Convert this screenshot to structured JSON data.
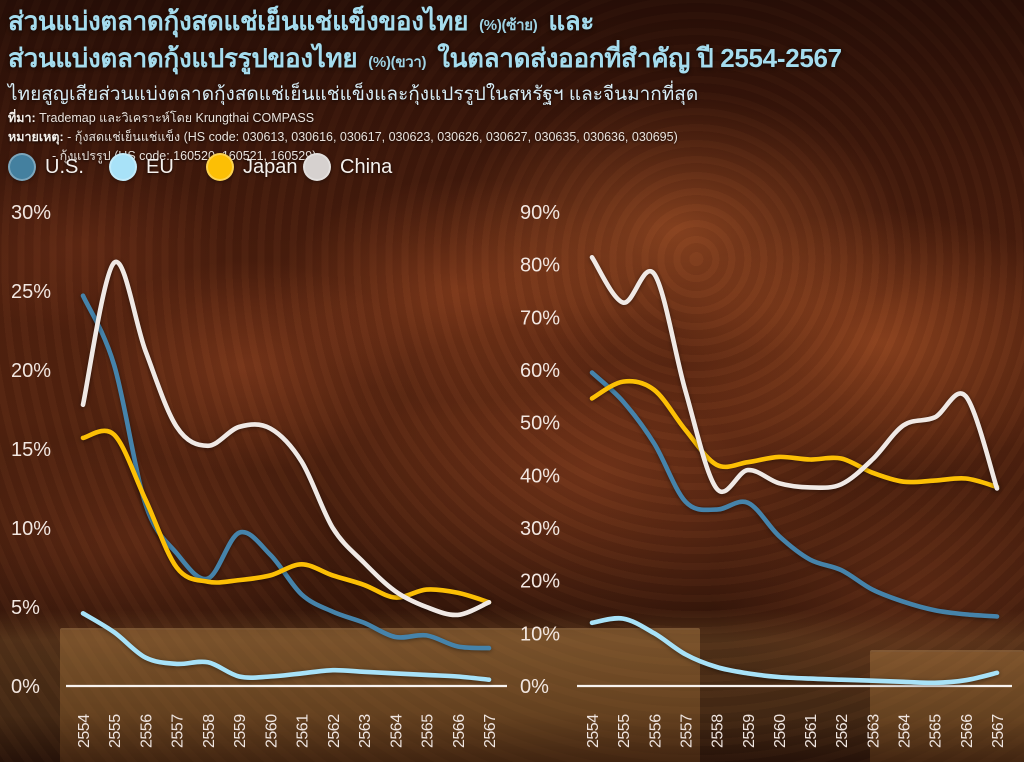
{
  "header": {
    "title1": {
      "main": "ส่วนแบ่งตลาดกุ้งสดแช่เย็นแช่แข็งของไทย",
      "small": "(%)(ซ้าย)",
      "tail": "และ"
    },
    "title2": {
      "main": "ส่วนแบ่งตลาดกุ้งแปรรูปของไทย",
      "small": "(%)(ขวา)",
      "tail": "ในตลาดส่งออกที่สำคัญ ปี 2554-2567"
    },
    "subtitle": "ไทยสูญเสียส่วนแบ่งตลาดกุ้งสดแช่เย็นแช่แข็งและกุ้งแปรรูปในสหรัฐฯ และจีนมากที่สุด",
    "source_label": "ที่มา:",
    "source_text": "Trademap และวิเคราะห์โดย Krungthai COMPASS",
    "note_label": "หมายเหตุ:",
    "note1": "- กุ้งสดแช่เย็นแช่แข็ง (HS code: 030613, 030616, 030617, 030623, 030626, 030627, 030635, 030636, 030695)",
    "note2": "- กุ้งแปรรูป (HS code: 160520, 160521, 160529)"
  },
  "legend": [
    {
      "label": "U.S.",
      "color": "#44809f"
    },
    {
      "label": "EU",
      "color": "#a8e2f8"
    },
    {
      "label": "Japan",
      "color": "#fcbf05"
    },
    {
      "label": "China",
      "color": "#d6d1cf"
    }
  ],
  "chart_data": [
    {
      "type": "line",
      "name": "ส่วนแบ่งตลาดกุ้งสดแช่เย็นแช่แข็งของไทย (%) (ซ้าย)",
      "categories": [
        "2554",
        "2555",
        "2556",
        "2557",
        "2558",
        "2559",
        "2560",
        "2561",
        "2562",
        "2563",
        "2564",
        "2565",
        "2566",
        "2567"
      ],
      "ylim": [
        0,
        30
      ],
      "yticks": [
        "30%",
        "25%",
        "20%",
        "15%",
        "10%",
        "5%",
        "0%"
      ],
      "grid": false,
      "legend_position": "top-left",
      "series": [
        {
          "name": "U.S.",
          "color": "#4683aa",
          "values": [
            24.7,
            20.3,
            11.5,
            8.4,
            6.8,
            9.7,
            8.3,
            5.8,
            4.7,
            4.0,
            3.1,
            3.2,
            2.5,
            2.4
          ]
        },
        {
          "name": "EU",
          "color": "#a8e2f8",
          "values": [
            4.6,
            3.4,
            1.8,
            1.4,
            1.5,
            0.6,
            0.6,
            0.8,
            1.0,
            0.9,
            0.8,
            0.7,
            0.6,
            0.4
          ]
        },
        {
          "name": "Japan",
          "color": "#fcbf05",
          "values": [
            15.7,
            15.9,
            11.8,
            7.5,
            6.6,
            6.7,
            7.0,
            7.7,
            7.0,
            6.4,
            5.6,
            6.1,
            5.9,
            5.3
          ]
        },
        {
          "name": "China",
          "color": "#f0e9e5",
          "values": [
            17.8,
            26.8,
            21.2,
            16.4,
            15.2,
            16.4,
            16.3,
            14.2,
            10.0,
            7.8,
            6.0,
            5.0,
            4.5,
            5.3
          ]
        }
      ]
    },
    {
      "type": "line",
      "name": "ส่วนแบ่งตลาดกุ้งแปรรูปของไทย (%) (ขวา)",
      "categories": [
        "2554",
        "2555",
        "2556",
        "2557",
        "2558",
        "2559",
        "2560",
        "2561",
        "2562",
        "2563",
        "2564",
        "2565",
        "2566",
        "2567"
      ],
      "ylim": [
        0,
        90
      ],
      "yticks": [
        "90%",
        "80%",
        "70%",
        "60%",
        "50%",
        "40%",
        "30%",
        "20%",
        "10%",
        "0%"
      ],
      "grid": false,
      "legend_position": "top-left",
      "series": [
        {
          "name": "U.S.",
          "color": "#4683aa",
          "values": [
            59.5,
            54.0,
            46.0,
            35.0,
            33.5,
            34.8,
            28.5,
            24.0,
            22.0,
            18.3,
            16.0,
            14.4,
            13.6,
            13.2
          ]
        },
        {
          "name": "EU",
          "color": "#a8e2f8",
          "values": [
            12.0,
            12.8,
            10.0,
            6.0,
            3.6,
            2.4,
            1.7,
            1.4,
            1.2,
            1.0,
            0.8,
            0.6,
            1.1,
            2.5
          ]
        },
        {
          "name": "Japan",
          "color": "#fcbf05",
          "values": [
            54.6,
            57.8,
            56.2,
            48.6,
            42.0,
            42.5,
            43.5,
            43.0,
            43.2,
            40.5,
            38.8,
            39.0,
            39.4,
            37.8
          ]
        },
        {
          "name": "China",
          "color": "#f0e9e5",
          "values": [
            81.4,
            72.8,
            78.2,
            56.0,
            37.5,
            41.0,
            38.5,
            37.7,
            38.3,
            43.0,
            49.5,
            51.0,
            55.0,
            37.5
          ]
        }
      ]
    }
  ]
}
